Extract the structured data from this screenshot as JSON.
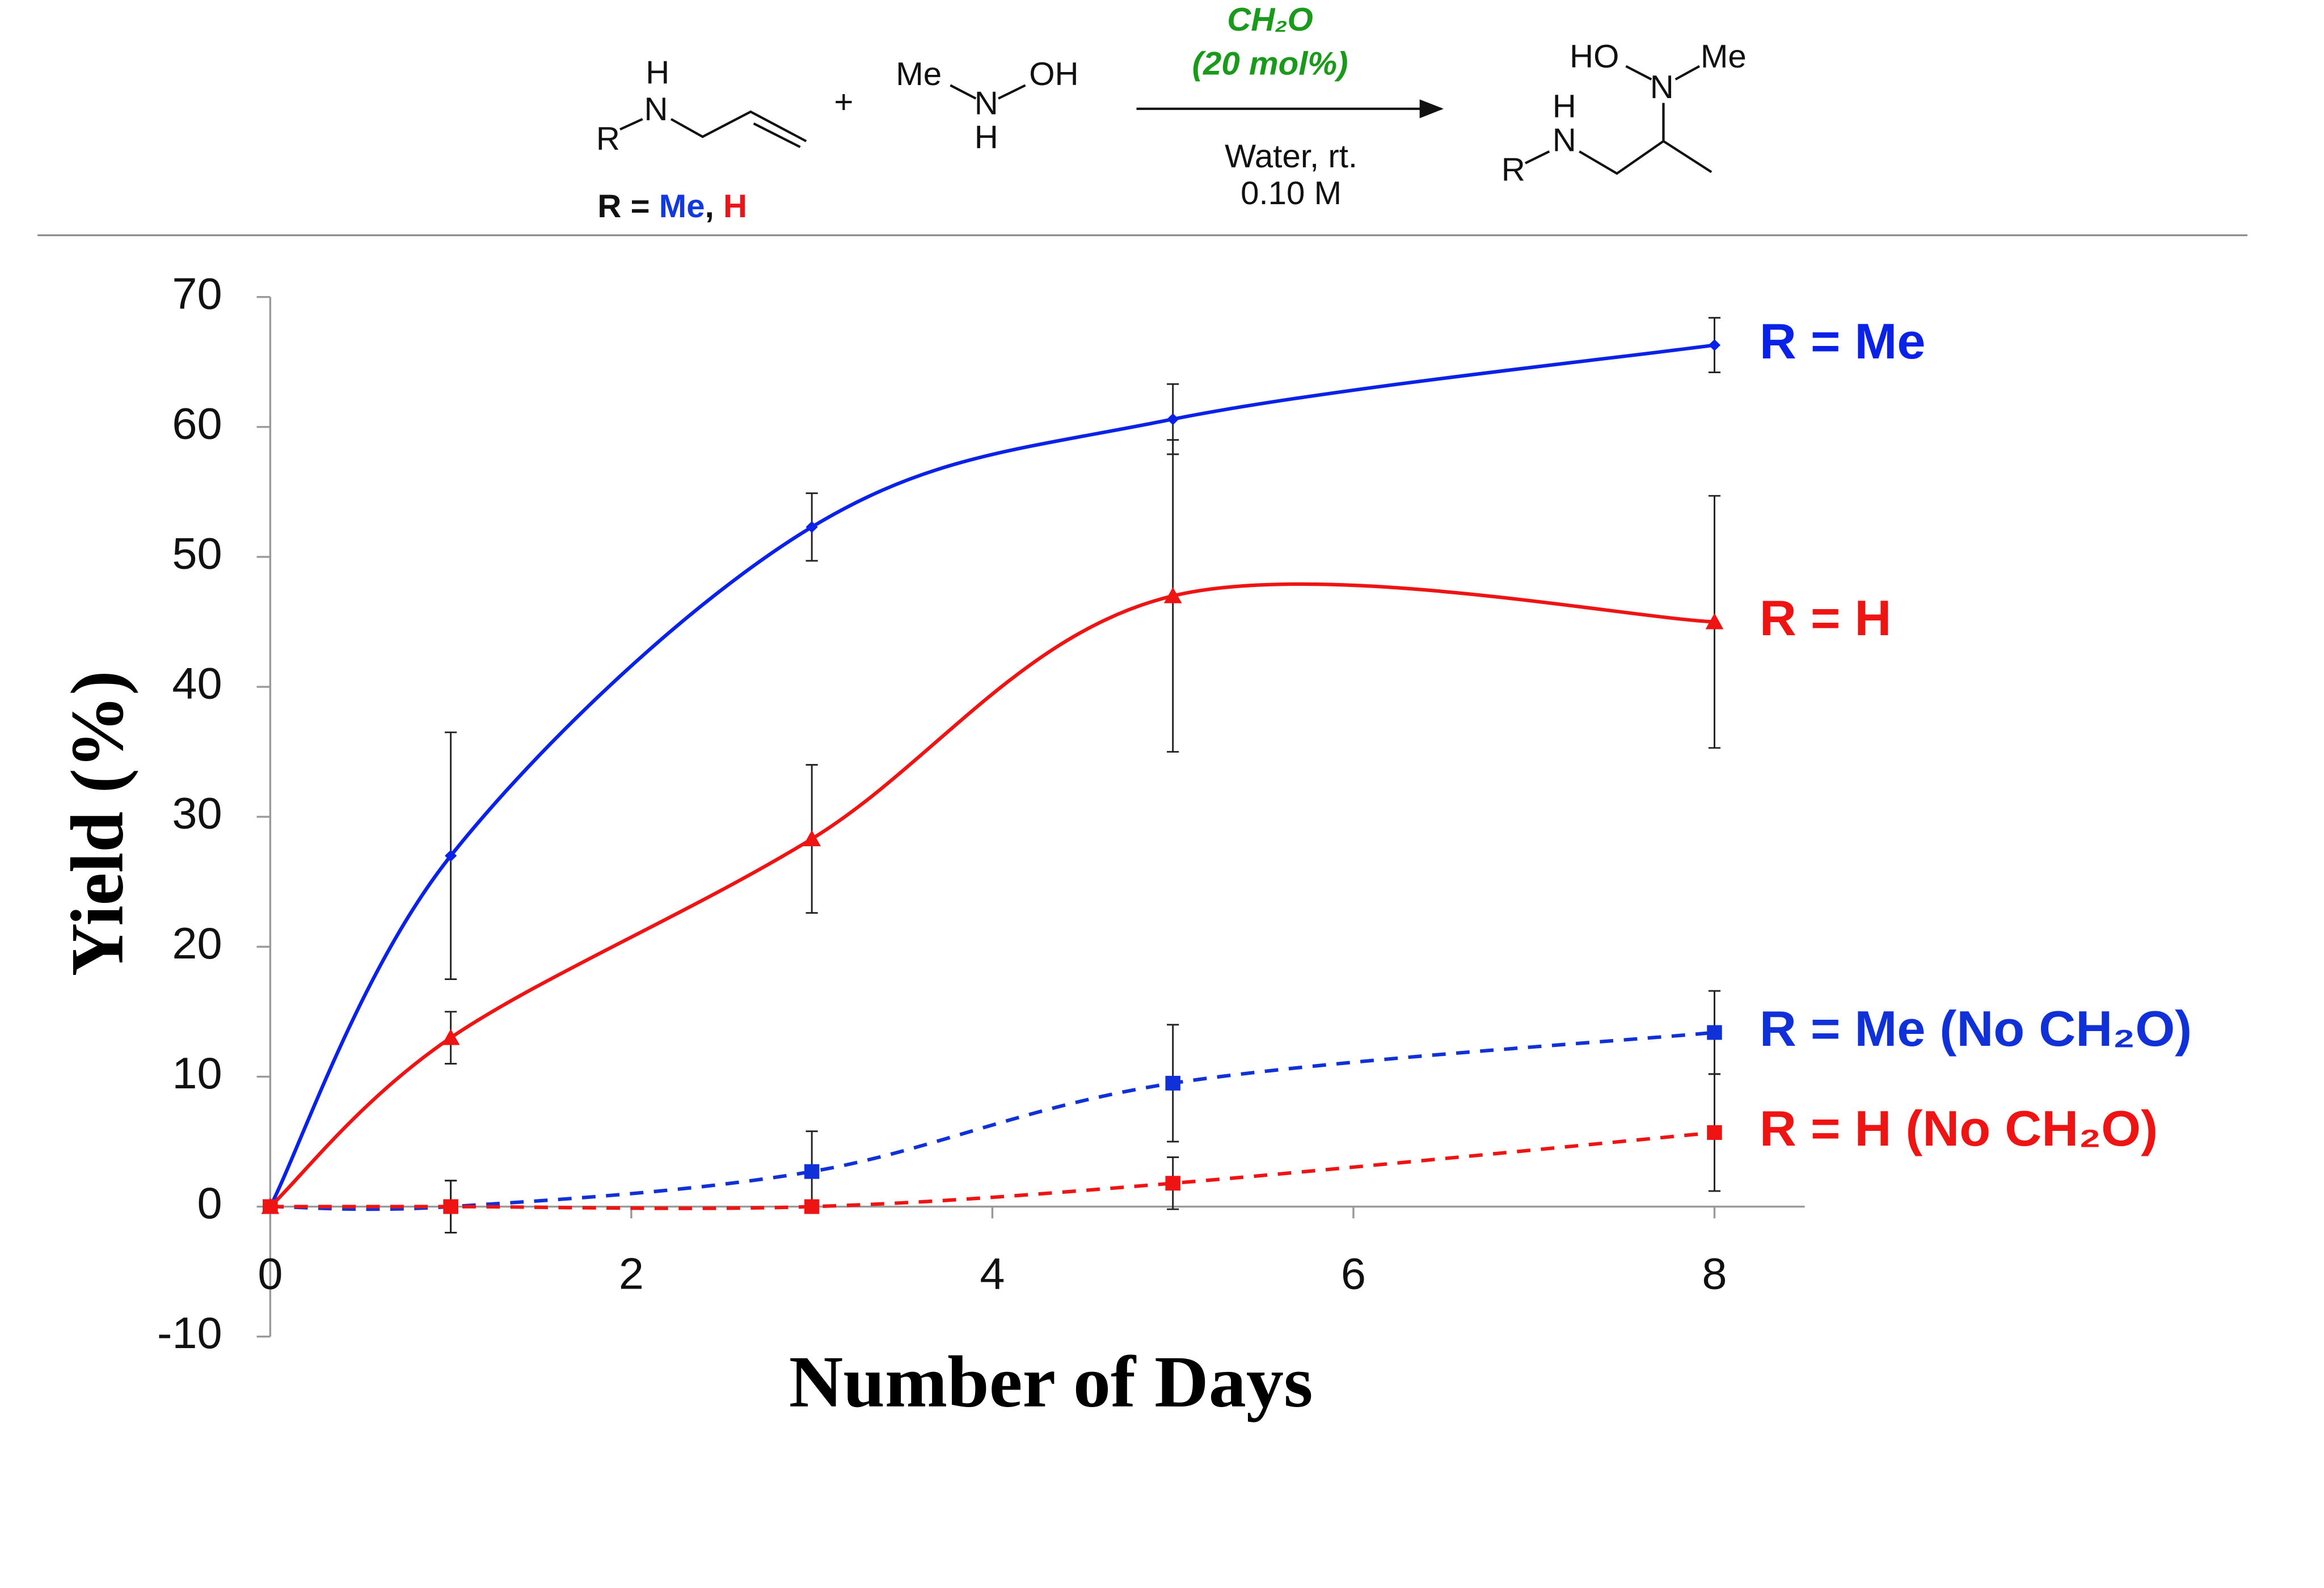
{
  "scheme": {
    "texts": [
      "H",
      "N",
      "R",
      "+",
      "Me",
      "N",
      "OH",
      "H",
      "HO",
      "N",
      "Me",
      "H",
      "N",
      "R"
    ],
    "r_label": [
      "R = ",
      "Me",
      ", ",
      "H"
    ],
    "catalyst": "CH₂O",
    "loading": "(20 mol%)",
    "conditions": "Water, rt.",
    "concentration": "0.10 M"
  },
  "chart_data": {
    "type": "line",
    "xlabel": "Number of Days",
    "ylabel": "Yield (%)",
    "x": [
      0,
      1,
      3,
      5,
      8
    ],
    "series": [
      {
        "name": "R = Me",
        "color": "#0a22e8",
        "dash": false,
        "marker": "diamond",
        "values": [
          0,
          27,
          52.3,
          60.6,
          66.3
        ],
        "errors": [
          0,
          9.5,
          2.6,
          2.7,
          2.1
        ]
      },
      {
        "name": "R = H",
        "color": "#ee1414",
        "dash": false,
        "marker": "triangle",
        "values": [
          0,
          13,
          28.3,
          47,
          45
        ],
        "errors": [
          0,
          2,
          5.7,
          12,
          9.7
        ]
      },
      {
        "name": "R = Me (No CH₂O)",
        "color": "#1030d8",
        "dash": true,
        "marker": "square",
        "values": [
          0,
          0,
          2.7,
          9.5,
          13.4
        ],
        "errors": [
          0,
          2,
          3.1,
          4.5,
          3.2
        ]
      },
      {
        "name": "R = H (No CH₂O)",
        "color": "#ee1414",
        "dash": true,
        "marker": "square",
        "values": [
          0,
          0,
          0,
          1.8,
          5.7
        ],
        "errors": [
          0,
          2,
          0,
          2,
          4.5
        ]
      }
    ],
    "xlim": [
      0,
      8.5
    ],
    "xticks": [
      0,
      2,
      4,
      6,
      8
    ],
    "ylim": [
      -10,
      70
    ],
    "yticks": [
      -10,
      0,
      10,
      20,
      30,
      40,
      50,
      60,
      70
    ]
  }
}
